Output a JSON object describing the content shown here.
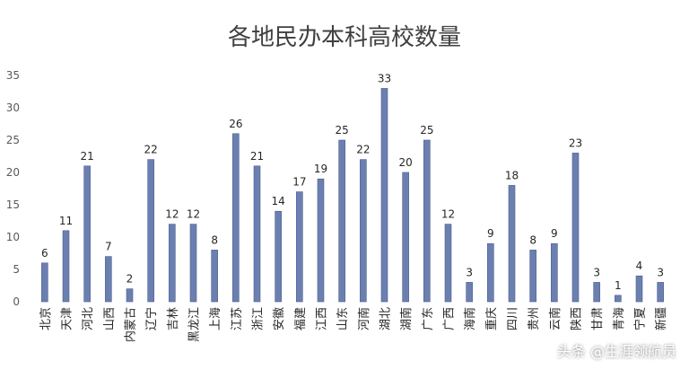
{
  "watermark": "头条 @生涯领航员",
  "chart_data": {
    "type": "bar",
    "title": "各地民办本科高校数量",
    "categories": [
      "北京",
      "天津",
      "河北",
      "山西",
      "内蒙古",
      "辽宁",
      "吉林",
      "黑龙江",
      "上海",
      "江苏",
      "浙江",
      "安徽",
      "福建",
      "江西",
      "山东",
      "河南",
      "湖北",
      "湖南",
      "广东",
      "广西",
      "海南",
      "重庆",
      "四川",
      "贵州",
      "云南",
      "陕西",
      "甘肃",
      "青海",
      "宁夏",
      "新疆"
    ],
    "values": [
      6,
      11,
      21,
      7,
      2,
      22,
      12,
      12,
      8,
      26,
      21,
      14,
      17,
      19,
      25,
      22,
      33,
      20,
      25,
      12,
      3,
      9,
      18,
      8,
      9,
      23,
      3,
      1,
      4,
      3
    ],
    "ylim": [
      0,
      35
    ],
    "yticks": [
      "0",
      "5",
      "10",
      "15",
      "20",
      "25",
      "30",
      "35"
    ],
    "grid": false,
    "bar_color": "#6b7fb0"
  }
}
